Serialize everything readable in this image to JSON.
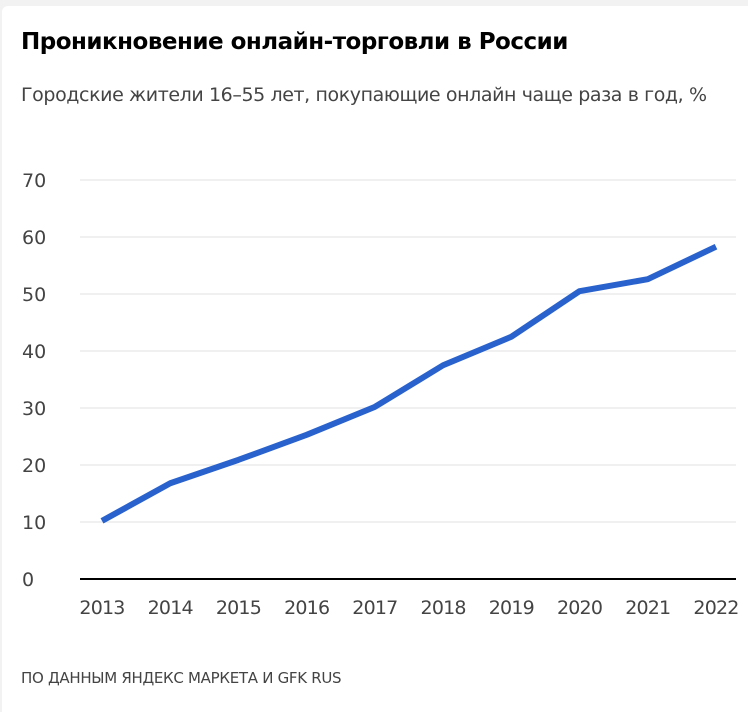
{
  "title": "Проникновение онлайн-торговли в России",
  "subtitle": "Городские жители 16–55 лет, покупающие онлайн чаще раза в год, %",
  "footer": "ПО ДАННЫМ ЯНДЕКС МАРКЕТА И GFK RUS",
  "colors": {
    "line": "#2962cc",
    "grid": "#ebebeb",
    "axis": "#000000",
    "tick_text": "#444444"
  },
  "chart_data": {
    "type": "line",
    "title": "Проникновение онлайн-торговли в России",
    "subtitle": "Городские жители 16–55 лет, покупающие онлайн чаще раза в год, %",
    "xlabel": "",
    "ylabel": "",
    "x": [
      "2013",
      "2014",
      "2015",
      "2016",
      "2017",
      "2018",
      "2019",
      "2020",
      "2021",
      "2022"
    ],
    "series": [
      {
        "name": "Городские жители 16–55 лет, покупающие онлайн чаще раза в год, %",
        "values": [
          10.2,
          16.8,
          20.9,
          25.3,
          30.2,
          37.5,
          42.5,
          50.5,
          52.6,
          58.3
        ]
      }
    ],
    "ylim": [
      0,
      70
    ],
    "yticks": [
      0,
      10,
      20,
      30,
      40,
      50,
      60,
      70
    ],
    "grid": true,
    "legend": "none"
  }
}
